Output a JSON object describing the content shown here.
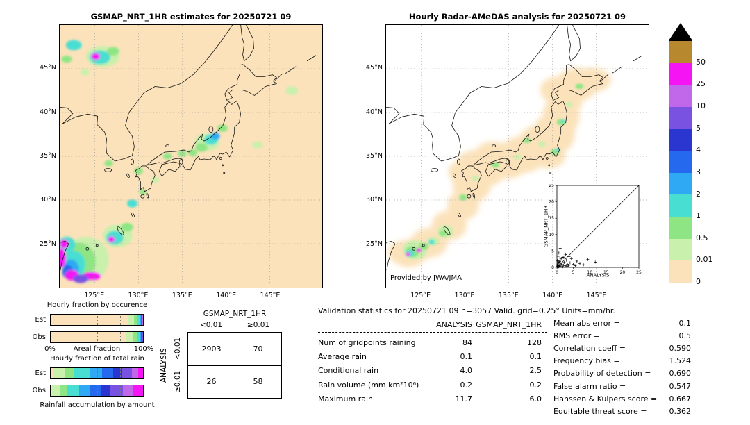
{
  "palette": {
    "cream": "#fbe2ba",
    "pale_green": "#c9f0ac",
    "green": "#8ee583",
    "cyan": "#49ded2",
    "sky": "#2fa9f3",
    "blue": "#2569ee",
    "indigo": "#2b35cf",
    "violet": "#7a52e2",
    "orchid": "#c168ea",
    "magenta": "#f414f4",
    "gold": "#b8882e",
    "triangle": "#000000"
  },
  "maps": {
    "lat_tick_labels": [
      "45°N",
      "40°N",
      "35°N",
      "30°N",
      "25°N"
    ],
    "lat_tick_values": [
      45,
      40,
      35,
      30,
      25
    ],
    "lon_tick_labels": [
      "125°E",
      "130°E",
      "135°E",
      "140°E",
      "145°E"
    ],
    "lon_tick_values": [
      125,
      130,
      135,
      140,
      145
    ],
    "extent": {
      "lon_min": 121,
      "lon_max": 151,
      "lat_min": 20,
      "lat_max": 50
    }
  },
  "left_map": {
    "background": "#fbe2ba",
    "blobs": [
      [
        124.0,
        23.2,
        2.6,
        2.6,
        "pale_green"
      ],
      [
        123.2,
        23.0,
        1.9,
        2.1,
        "green"
      ],
      [
        122.6,
        22.6,
        1.3,
        1.6,
        "cyan"
      ],
      [
        122.3,
        22.1,
        0.9,
        1.1,
        "sky"
      ],
      [
        121.9,
        21.8,
        0.6,
        0.8,
        "blue"
      ],
      [
        121.8,
        24.9,
        1.0,
        0.9,
        "cyan"
      ],
      [
        121.5,
        25.0,
        0.5,
        0.5,
        "magenta"
      ],
      [
        121.2,
        23.4,
        0.5,
        1.1,
        "magenta"
      ],
      [
        122.4,
        21.4,
        0.8,
        0.6,
        "magenta"
      ],
      [
        124.6,
        21.3,
        1.1,
        0.5,
        "magenta"
      ],
      [
        123.4,
        21.0,
        0.9,
        0.5,
        "violet"
      ],
      [
        127.6,
        25.9,
        1.7,
        1.3,
        "pale_green"
      ],
      [
        127.3,
        25.7,
        1.0,
        0.8,
        "cyan"
      ],
      [
        126.9,
        25.5,
        0.4,
        0.35,
        "magenta"
      ],
      [
        128.7,
        26.9,
        0.7,
        0.5,
        "green"
      ],
      [
        125.9,
        46.4,
        1.9,
        1.2,
        "pale_green"
      ],
      [
        125.6,
        46.3,
        1.2,
        0.8,
        "cyan"
      ],
      [
        125.1,
        46.4,
        0.5,
        0.4,
        "magenta"
      ],
      [
        127.1,
        47.0,
        0.7,
        0.5,
        "green"
      ],
      [
        122.6,
        47.7,
        0.9,
        0.6,
        "cyan"
      ],
      [
        121.8,
        46.1,
        0.6,
        0.4,
        "green"
      ],
      [
        123.9,
        44.6,
        0.5,
        0.4,
        "pale_green"
      ],
      [
        137.8,
        36.6,
        1.4,
        1.0,
        "pale_green"
      ],
      [
        138.3,
        36.9,
        0.8,
        0.6,
        "cyan"
      ],
      [
        138.8,
        37.3,
        0.5,
        0.4,
        "sky"
      ],
      [
        137.2,
        36.0,
        0.7,
        0.5,
        "green"
      ],
      [
        136.2,
        35.4,
        0.5,
        0.4,
        "green"
      ],
      [
        139.6,
        38.2,
        0.6,
        0.4,
        "green"
      ],
      [
        135.0,
        35.3,
        0.5,
        0.35,
        "green"
      ],
      [
        133.3,
        35.0,
        0.5,
        0.35,
        "green"
      ],
      [
        130.0,
        33.3,
        0.5,
        0.4,
        "green"
      ],
      [
        131.9,
        32.3,
        0.45,
        0.35,
        "pale_green"
      ],
      [
        129.3,
        29.6,
        0.6,
        0.45,
        "cyan"
      ],
      [
        130.5,
        30.9,
        0.4,
        0.3,
        "green"
      ],
      [
        126.6,
        34.2,
        0.5,
        0.35,
        "green"
      ],
      [
        143.6,
        36.3,
        0.6,
        0.4,
        "pale_green"
      ],
      [
        147.5,
        42.5,
        0.7,
        0.5,
        "pale_green"
      ]
    ]
  },
  "right_map": {
    "background": "#ffffff",
    "credit": "Provided by JWA/JMA",
    "coverage": [
      [
        123.6,
        23.9,
        2.0,
        1.6
      ],
      [
        122.8,
        24.0,
        1.6,
        1.3
      ],
      [
        124.8,
        24.5,
        1.8,
        1.4
      ],
      [
        125.9,
        25.1,
        2.1,
        1.7
      ],
      [
        128.2,
        27.1,
        2.0,
        1.7
      ],
      [
        129.8,
        29.4,
        1.8,
        1.7
      ],
      [
        130.8,
        31.8,
        2.2,
        2.1
      ],
      [
        132.2,
        33.4,
        2.4,
        1.9
      ],
      [
        134.6,
        34.3,
        2.7,
        1.9
      ],
      [
        136.6,
        35.2,
        2.7,
        2.1
      ],
      [
        138.6,
        36.3,
        2.6,
        2.3
      ],
      [
        140.2,
        37.6,
        2.4,
        2.4
      ],
      [
        141.0,
        39.6,
        2.1,
        2.4
      ],
      [
        141.4,
        41.6,
        2.1,
        2.0
      ],
      [
        142.8,
        43.2,
        2.4,
        1.9
      ],
      [
        144.6,
        43.7,
        2.1,
        1.4
      ],
      [
        140.6,
        42.6,
        2.0,
        1.5
      ],
      [
        139.6,
        35.1,
        1.9,
        1.5
      ],
      [
        133.2,
        35.3,
        2.0,
        1.4
      ],
      [
        131.0,
        34.3,
        1.8,
        1.4
      ],
      [
        129.8,
        33.2,
        1.7,
        1.4
      ]
    ],
    "blobs": [
      [
        124.3,
        24.3,
        1.4,
        1.1,
        "pale_green"
      ],
      [
        124.0,
        24.1,
        0.8,
        0.65,
        "green"
      ],
      [
        123.7,
        23.9,
        0.5,
        0.4,
        "cyan"
      ],
      [
        123.5,
        23.8,
        0.25,
        0.22,
        "magenta"
      ],
      [
        124.75,
        24.25,
        0.3,
        0.25,
        "magenta"
      ],
      [
        125.3,
        24.7,
        0.55,
        0.4,
        "green"
      ],
      [
        126.4,
        25.3,
        0.7,
        0.5,
        "pale_green"
      ],
      [
        126.2,
        25.2,
        0.35,
        0.3,
        "cyan"
      ],
      [
        127.8,
        26.4,
        0.9,
        0.7,
        "pale_green"
      ],
      [
        127.5,
        26.2,
        0.45,
        0.35,
        "green"
      ],
      [
        129.8,
        30.3,
        0.45,
        0.35,
        "green"
      ],
      [
        131.2,
        32.5,
        0.4,
        0.3,
        "pale_green"
      ],
      [
        133.5,
        34.0,
        0.45,
        0.3,
        "green"
      ],
      [
        136.0,
        34.9,
        0.4,
        0.3,
        "pale_green"
      ],
      [
        137.1,
        36.8,
        0.4,
        0.3,
        "green"
      ],
      [
        138.8,
        36.4,
        0.45,
        0.3,
        "pale_green"
      ],
      [
        140.3,
        35.5,
        0.5,
        0.35,
        "green"
      ],
      [
        140.6,
        35.7,
        0.25,
        0.2,
        "cyan"
      ],
      [
        141.0,
        38.9,
        0.5,
        0.35,
        "green"
      ],
      [
        141.2,
        39.0,
        0.22,
        0.18,
        "cyan"
      ],
      [
        141.9,
        40.9,
        0.4,
        0.3,
        "pale_green"
      ],
      [
        143.1,
        43.0,
        0.45,
        0.3,
        "green"
      ]
    ]
  },
  "colorbar": {
    "labels": [
      "50",
      "25",
      "10",
      "5",
      "4",
      "3",
      "2",
      "1",
      "0.5",
      "0.01",
      "0"
    ],
    "segment_colors": [
      "gold",
      "magenta",
      "orchid",
      "violet",
      "indigo",
      "blue",
      "sky",
      "cyan",
      "green",
      "pale_green",
      "cream"
    ],
    "triangle_color": "#000000",
    "units": "mm/hr"
  },
  "chart_data": [
    {
      "type": "heatmap",
      "title": "GSMAP_NRT_1HR estimates for 20250721 09",
      "xlabel": "longitude",
      "ylabel": "latitude",
      "x_ticks": [
        "125°E",
        "130°E",
        "135°E",
        "140°E",
        "145°E"
      ],
      "y_ticks": [
        "45°N",
        "40°N",
        "35°N",
        "30°N",
        "25°N"
      ],
      "levels": [
        0,
        0.01,
        0.5,
        1,
        2,
        3,
        4,
        5,
        10,
        25,
        50
      ],
      "units": "mm/hr"
    },
    {
      "type": "heatmap",
      "title": "Hourly Radar-AMeDAS analysis for 20250721 09",
      "xlabel": "longitude",
      "ylabel": "latitude",
      "x_ticks": [
        "125°E",
        "130°E",
        "135°E",
        "140°E",
        "145°E"
      ],
      "y_ticks": [
        "45°N",
        "40°N",
        "35°N",
        "30°N",
        "25°N"
      ],
      "levels": [
        0,
        0.01,
        0.5,
        1,
        2,
        3,
        4,
        5,
        10,
        25,
        50
      ],
      "units": "mm/hr",
      "credit": "Provided by JWA/JMA"
    },
    {
      "type": "scatter",
      "xlabel": "ANALYSIS",
      "ylabel": "GSMAP_NRT_1HR",
      "xlim": [
        0,
        25
      ],
      "ylim": [
        0,
        25
      ],
      "ticks": [
        0,
        5,
        10,
        15,
        20,
        25
      ],
      "diagonal": true,
      "points": [
        [
          0.1,
          0.1
        ],
        [
          0.2,
          0.4
        ],
        [
          0.3,
          0.2
        ],
        [
          0.4,
          1.1
        ],
        [
          0.5,
          0.3
        ],
        [
          0.7,
          0.6
        ],
        [
          0.9,
          1.9
        ],
        [
          1.1,
          0.4
        ],
        [
          1.4,
          1.0
        ],
        [
          1.7,
          3.1
        ],
        [
          2.0,
          0.7
        ],
        [
          2.2,
          1.5
        ],
        [
          2.5,
          0.5
        ],
        [
          2.9,
          2.2
        ],
        [
          3.2,
          1.0
        ],
        [
          3.5,
          0.6
        ],
        [
          4.0,
          1.4
        ],
        [
          4.4,
          2.7
        ],
        [
          5.0,
          1.0
        ],
        [
          5.6,
          0.5
        ],
        [
          6.1,
          1.9
        ],
        [
          7.0,
          1.2
        ],
        [
          8.1,
          0.8
        ],
        [
          9.4,
          2.4
        ],
        [
          11.7,
          1.6
        ],
        [
          0.3,
          3.4
        ],
        [
          0.6,
          4.4
        ],
        [
          1.0,
          5.8
        ],
        [
          2.7,
          3.9
        ],
        [
          0.2,
          2.1
        ],
        [
          1.3,
          2.6
        ],
        [
          0.8,
          1.7
        ],
        [
          2.1,
          3.0
        ],
        [
          3.7,
          3.3
        ],
        [
          0.4,
          1.5
        ],
        [
          0.15,
          0.8
        ],
        [
          0.6,
          0.15
        ],
        [
          1.8,
          0.2
        ],
        [
          3.0,
          0.3
        ],
        [
          0.9,
          2.9
        ]
      ]
    },
    {
      "type": "bar",
      "orientation": "horizontal_stacked",
      "title": "Hourly fraction by occurence",
      "categories": [
        "Est",
        "Obs"
      ],
      "bins": [
        "0",
        "0.01-0.5",
        "0.5-1",
        "1-2",
        "2-3",
        "3-4",
        "4-5",
        "5-10",
        "10-25",
        "25-50"
      ],
      "colors": [
        "cream",
        "pale_green",
        "green",
        "cyan",
        "sky",
        "blue",
        "indigo",
        "violet",
        "orchid",
        "magenta"
      ],
      "values_pct": [
        [
          84,
          6,
          3.5,
          2.5,
          1.5,
          1,
          0.5,
          0.4,
          0.3,
          0.3
        ],
        [
          81,
          8,
          4.5,
          3,
          1.5,
          1,
          0.4,
          0.3,
          0.2,
          0.1
        ]
      ],
      "xlabel": "Areal fraction",
      "xlim": [
        "0%",
        "100%"
      ]
    },
    {
      "type": "bar",
      "orientation": "horizontal_stacked",
      "title": "Hourly fraction of total rain",
      "categories": [
        "Est",
        "Obs"
      ],
      "bins": [
        "0",
        "0.01-0.5",
        "0.5-1",
        "1-2",
        "2-3",
        "3-4",
        "4-5",
        "5-10",
        "10-25",
        "25-50"
      ],
      "colors": [
        "cream",
        "pale_green",
        "green",
        "cyan",
        "sky",
        "blue",
        "indigo",
        "violet",
        "orchid",
        "magenta"
      ],
      "values_pct": [
        [
          2,
          13,
          10,
          17,
          14,
          12,
          9,
          11,
          7,
          5
        ],
        [
          1.5,
          8,
          8.5,
          13,
          12,
          12,
          10,
          13,
          11,
          11
        ]
      ],
      "caption": "Rainfall accumulation by amount"
    },
    {
      "type": "table",
      "col_title": "GSMAP_NRT_1HR",
      "row_title": "ANALYSIS",
      "columns": [
        "<0.01",
        "≥0.01"
      ],
      "row_labels": [
        "<0.01",
        "≥0.01"
      ],
      "values": [
        [
          2903,
          70
        ],
        [
          26,
          58
        ]
      ]
    },
    {
      "type": "table",
      "title": "Validation statistics for 20250721 09  n=3057 Valid. grid=0.25° Units=mm/hr.",
      "columns": [
        "",
        "ANALYSIS",
        "GSMAP_NRT_1HR"
      ],
      "rows": [
        [
          "Num of gridpoints raining",
          "84",
          "128"
        ],
        [
          "Average rain",
          "0.1",
          "0.1"
        ],
        [
          "Conditional rain",
          "4.0",
          "2.5"
        ],
        [
          "Rain volume (mm km²10⁶)",
          "0.2",
          "0.2"
        ],
        [
          "Maximum rain",
          "11.7",
          "6.0"
        ]
      ],
      "scores": [
        [
          "Mean abs error =",
          "0.1"
        ],
        [
          "RMS error =",
          "0.5"
        ],
        [
          "Correlation coeff =",
          "0.590"
        ],
        [
          "Frequency bias =",
          "1.524"
        ],
        [
          "Probability of detection =",
          "0.690"
        ],
        [
          "False alarm ratio =",
          "0.547"
        ],
        [
          "Hanssen & Kuipers score =",
          "0.667"
        ],
        [
          "Equitable threat score =",
          "0.362"
        ]
      ]
    }
  ]
}
